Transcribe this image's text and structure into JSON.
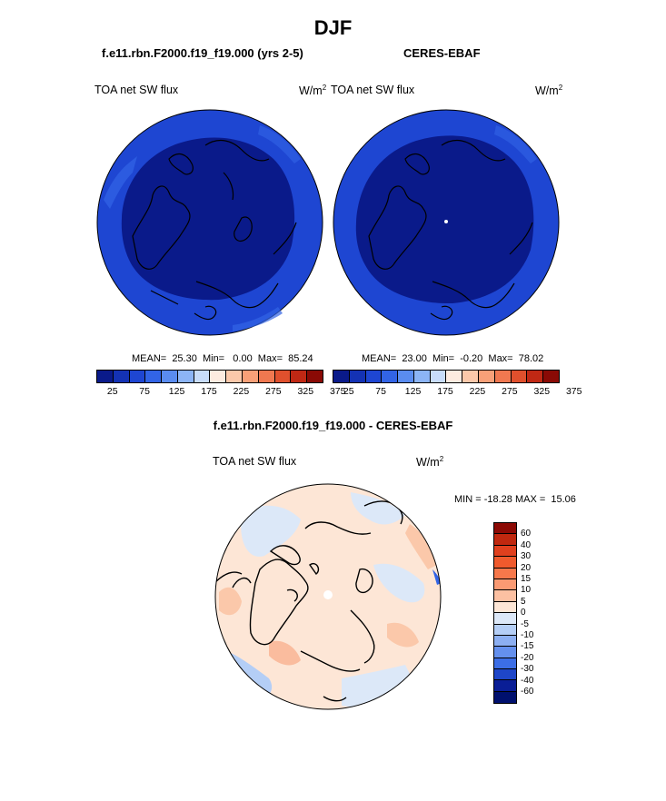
{
  "season": "DJF",
  "left_panel": {
    "case": "f.e11.rbn.F2000.f19_f19.000 (yrs 2-5)",
    "var": "TOA net SW flux",
    "units": "W/m",
    "units_sup": "2",
    "stats": "MEAN=  25.30  Min=   0.00  Max=  85.24"
  },
  "right_panel": {
    "case": "CERES-EBAF",
    "var": "TOA net SW flux",
    "units": "W/m",
    "units_sup": "2",
    "stats": "MEAN=  23.00  Min=  -0.20  Max=  78.02"
  },
  "abs_colorbar": {
    "colors": [
      "#0a1a8a",
      "#1432b4",
      "#1e46d2",
      "#3264e6",
      "#5a8cf0",
      "#8cb4f6",
      "#c8dcfa",
      "#fdebe0",
      "#fbc8aa",
      "#f8a078",
      "#f07850",
      "#e0502d",
      "#c02814",
      "#8a0a05"
    ],
    "tick_labels": [
      "25",
      "75",
      "125",
      "175",
      "225",
      "275",
      "325",
      "375"
    ]
  },
  "diff_panel": {
    "title": "f.e11.rbn.F2000.f19_f19.000 - CERES-EBAF",
    "var": "TOA net SW flux",
    "units": "W/m",
    "units_sup": "2",
    "minmax": "MIN = -18.28 MAX =  15.06",
    "colorbar_labels": [
      "60",
      "40",
      "30",
      "20",
      "15",
      "10",
      "5",
      "0",
      "-5",
      "-10",
      "-15",
      "-20",
      "-30",
      "-40",
      "-60"
    ],
    "colorbar_colors": [
      "#8c0a05",
      "#c0280f",
      "#e0401e",
      "#f05a2d",
      "#f7784b",
      "#fa9a73",
      "#fcc0a2",
      "#fde6d6",
      "#dce8f8",
      "#b4cef6",
      "#8caff2",
      "#6490ee",
      "#3c6ee6",
      "#1e46c8",
      "#0a1e96",
      "#00106e"
    ]
  }
}
